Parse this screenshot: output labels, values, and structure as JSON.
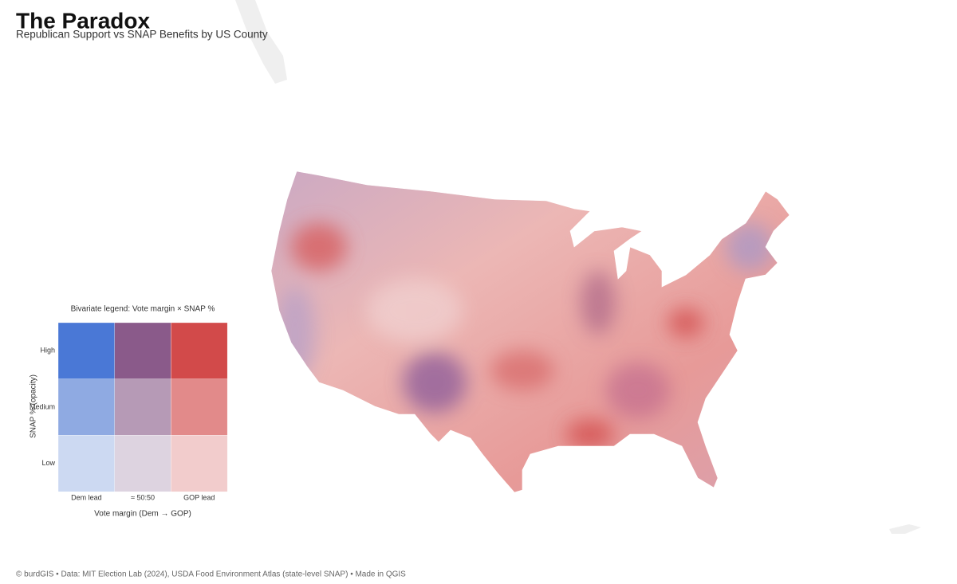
{
  "title": "The Paradox",
  "subtitle": "Republican Support vs SNAP Benefits by US County",
  "legend": {
    "title": "Bivariate legend: Vote margin × SNAP %",
    "y_axis_label": "SNAP % (opacity)",
    "x_axis_label": "Vote margin (Dem → GOP)",
    "columns": [
      "Dem lead",
      "≈ 50:50",
      "GOP lead"
    ],
    "rows": [
      {
        "label": "High",
        "colors": [
          "#4a78d6",
          "#8a5a8a",
          "#d24a4a"
        ]
      },
      {
        "label": "Medium",
        "colors": [
          "#8faae2",
          "#b69ab6",
          "#e28a8a"
        ]
      },
      {
        "label": "Low",
        "colors": [
          "#ccd9f2",
          "#ddd3e0",
          "#f2cccc"
        ]
      }
    ]
  },
  "footer": "© burdGIS • Data: MIT Election Lab (2024), USDA Food Environment Atlas (state-level SNAP) • Made in QGIS"
}
